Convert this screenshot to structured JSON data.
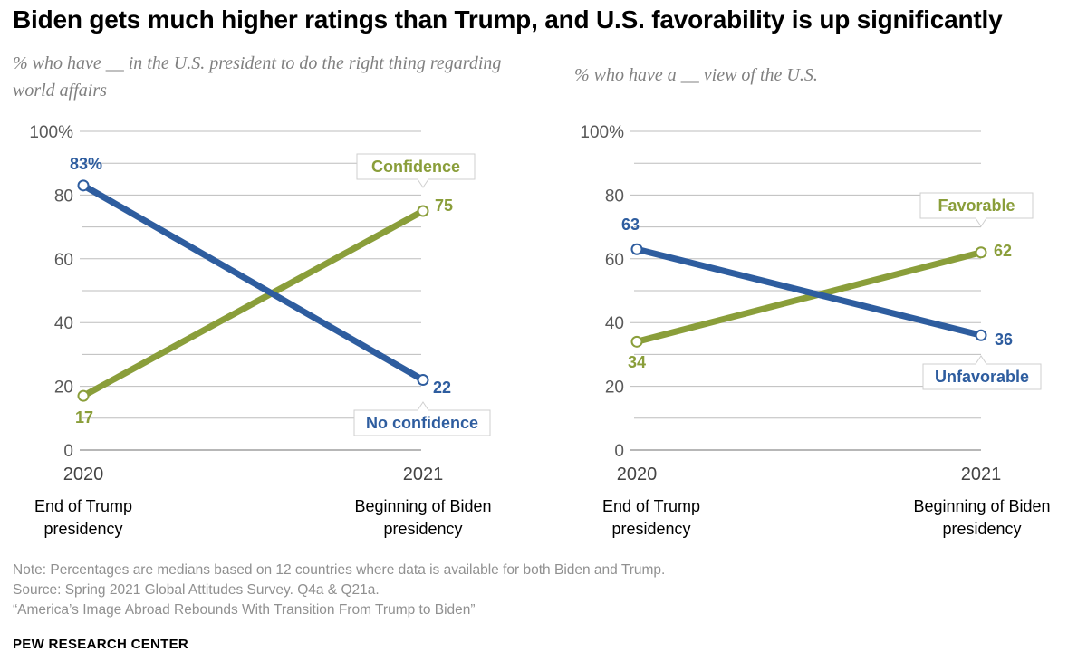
{
  "title": "Biden gets much higher ratings than Trump, and U.S. favorability is up significantly",
  "colors": {
    "blue": "#2e5d9f",
    "green": "#8a9e3a",
    "grid": "#bdbdbd"
  },
  "chart_data": [
    {
      "type": "line",
      "subtitle": "% who have __ in the U.S. president to do the right thing regarding world affairs",
      "x": [
        "2020",
        "2021"
      ],
      "x_desc": [
        [
          "End of Trump",
          "presidency"
        ],
        [
          "Beginning of Biden",
          "presidency"
        ]
      ],
      "ylim": [
        0,
        100
      ],
      "yticks": [
        "100%",
        "80",
        "60",
        "40",
        "20",
        "0"
      ],
      "series": [
        {
          "name": "Confidence",
          "color": "green",
          "values": [
            17,
            75
          ],
          "labels": [
            "17",
            "75"
          ]
        },
        {
          "name": "No confidence",
          "color": "blue",
          "values": [
            83,
            22
          ],
          "labels": [
            "83%",
            "22"
          ]
        }
      ]
    },
    {
      "type": "line",
      "subtitle": "% who have a __ view of the U.S.",
      "x": [
        "2020",
        "2021"
      ],
      "x_desc": [
        [
          "End of Trump",
          "presidency"
        ],
        [
          "Beginning of Biden",
          "presidency"
        ]
      ],
      "ylim": [
        0,
        100
      ],
      "yticks": [
        "100%",
        "80",
        "60",
        "40",
        "20",
        "0"
      ],
      "series": [
        {
          "name": "Favorable",
          "color": "green",
          "values": [
            34,
            62
          ],
          "labels": [
            "34",
            "62"
          ]
        },
        {
          "name": "Unfavorable",
          "color": "blue",
          "values": [
            63,
            36
          ],
          "labels": [
            "63",
            "36"
          ]
        }
      ]
    }
  ],
  "footer": {
    "note": "Note: Percentages are medians based on 12 countries where data is available for both Biden and Trump.",
    "source": "Source: Spring 2021 Global Attitudes Survey. Q4a & Q21a.",
    "report": "“America’s Image Abroad Rebounds With Transition From Trump to Biden”",
    "brand": "PEW RESEARCH CENTER"
  }
}
